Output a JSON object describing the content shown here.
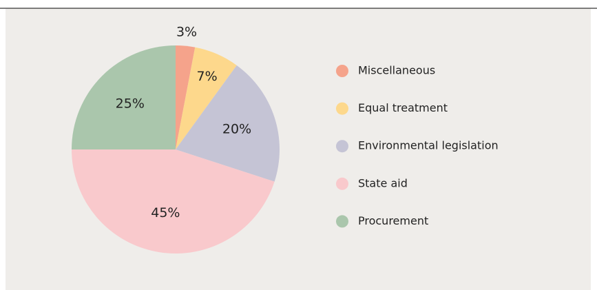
{
  "chart_data": {
    "type": "pie",
    "categories": [
      "Miscellaneous",
      "Equal treatment",
      "Environmental legislation",
      "State aid",
      "Procurement"
    ],
    "values": [
      3,
      7,
      20,
      45,
      25
    ],
    "value_labels": [
      "3%",
      "7%",
      "20%",
      "45%",
      "25%"
    ],
    "colors": [
      "#f5a38b",
      "#fdd88c",
      "#c5c4d5",
      "#f9c9cc",
      "#aac6ac"
    ],
    "legend": "right"
  }
}
